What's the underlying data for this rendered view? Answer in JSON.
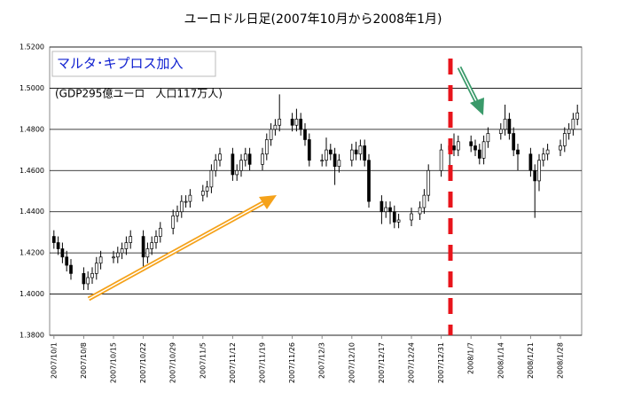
{
  "chart_data": {
    "type": "candlestick",
    "title": "ユーロドル日足(2007年10月から2008年1月)",
    "annotations": [
      "マルタ･キプロス加入",
      "(GDP295億ユーロ　人口117万人)"
    ],
    "x": [
      "2007/10/1",
      "2007/10/2",
      "2007/10/3",
      "2007/10/4",
      "2007/10/5",
      "2007/10/8",
      "2007/10/9",
      "2007/10/10",
      "2007/10/11",
      "2007/10/12",
      "2007/10/15",
      "2007/10/16",
      "2007/10/17",
      "2007/10/18",
      "2007/10/19",
      "2007/10/22",
      "2007/10/23",
      "2007/10/24",
      "2007/10/25",
      "2007/10/26",
      "2007/10/29",
      "2007/10/30",
      "2007/10/31",
      "2007/11/1",
      "2007/11/2",
      "2007/11/5",
      "2007/11/6",
      "2007/11/7",
      "2007/11/8",
      "2007/11/9",
      "2007/11/12",
      "2007/11/13",
      "2007/11/14",
      "2007/11/15",
      "2007/11/16",
      "2007/11/19",
      "2007/11/20",
      "2007/11/21",
      "2007/11/22",
      "2007/11/23",
      "2007/11/26",
      "2007/11/27",
      "2007/11/28",
      "2007/11/29",
      "2007/11/30",
      "2007/12/3",
      "2007/12/4",
      "2007/12/5",
      "2007/12/6",
      "2007/12/7",
      "2007/12/10",
      "2007/12/11",
      "2007/12/12",
      "2007/12/13",
      "2007/12/14",
      "2007/12/17",
      "2007/12/18",
      "2007/12/19",
      "2007/12/20",
      "2007/12/21",
      "2007/12/24",
      "2007/12/26",
      "2007/12/27",
      "2007/12/28",
      "2007/12/31",
      "2008/1/2",
      "2008/1/3",
      "2008/1/4",
      "2008/1/7",
      "2008/1/8",
      "2008/1/9",
      "2008/1/10",
      "2008/1/11",
      "2008/1/14",
      "2008/1/15",
      "2008/1/16",
      "2008/1/17",
      "2008/1/18",
      "2008/1/21",
      "2008/1/22",
      "2008/1/23",
      "2008/1/24",
      "2008/1/25",
      "2008/1/28",
      "2008/1/29",
      "2008/1/30",
      "2008/1/31",
      "2008/2/1"
    ],
    "open": [
      1.428,
      1.425,
      1.422,
      1.418,
      1.414,
      1.41,
      1.405,
      1.408,
      1.41,
      1.415,
      1.418,
      1.418,
      1.42,
      1.422,
      1.425,
      1.428,
      1.418,
      1.422,
      1.425,
      1.428,
      1.432,
      1.438,
      1.44,
      1.445,
      1.445,
      1.448,
      1.45,
      1.452,
      1.46,
      1.465,
      1.468,
      1.458,
      1.46,
      1.465,
      1.468,
      1.463,
      1.468,
      1.475,
      1.48,
      1.482,
      1.485,
      1.482,
      1.485,
      1.48,
      1.475,
      1.465,
      1.465,
      1.47,
      1.468,
      1.462,
      1.465,
      1.47,
      1.468,
      1.472,
      1.465,
      1.445,
      1.44,
      1.442,
      1.44,
      1.435,
      1.436,
      1.439,
      1.442,
      1.448,
      1.46,
      1.47,
      1.472,
      1.47,
      1.474,
      1.472,
      1.47,
      1.466,
      1.474,
      1.478,
      1.48,
      1.485,
      1.478,
      1.47,
      1.468,
      1.46,
      1.455,
      1.465,
      1.468,
      1.47,
      1.472,
      1.478,
      1.48,
      1.485
    ],
    "high": [
      1.431,
      1.428,
      1.425,
      1.421,
      1.417,
      1.413,
      1.411,
      1.413,
      1.418,
      1.421,
      1.421,
      1.423,
      1.425,
      1.428,
      1.431,
      1.431,
      1.425,
      1.428,
      1.431,
      1.435,
      1.441,
      1.443,
      1.448,
      1.448,
      1.451,
      1.453,
      1.455,
      1.463,
      1.468,
      1.471,
      1.471,
      1.463,
      1.468,
      1.471,
      1.471,
      1.471,
      1.478,
      1.483,
      1.485,
      1.497,
      1.488,
      1.49,
      1.488,
      1.483,
      1.478,
      1.468,
      1.476,
      1.473,
      1.471,
      1.468,
      1.473,
      1.474,
      1.475,
      1.475,
      1.468,
      1.448,
      1.445,
      1.445,
      1.443,
      1.439,
      1.442,
      1.445,
      1.451,
      1.463,
      1.473,
      1.475,
      1.478,
      1.477,
      1.477,
      1.475,
      1.473,
      1.477,
      1.481,
      1.483,
      1.492,
      1.488,
      1.481,
      1.473,
      1.471,
      1.463,
      1.468,
      1.471,
      1.473,
      1.475,
      1.481,
      1.483,
      1.488,
      1.492
    ],
    "low": [
      1.422,
      1.419,
      1.415,
      1.411,
      1.407,
      1.402,
      1.402,
      1.405,
      1.407,
      1.412,
      1.415,
      1.415,
      1.417,
      1.419,
      1.422,
      1.413,
      1.415,
      1.419,
      1.422,
      1.425,
      1.429,
      1.435,
      1.437,
      1.442,
      1.442,
      1.445,
      1.447,
      1.449,
      1.457,
      1.462,
      1.455,
      1.455,
      1.457,
      1.462,
      1.46,
      1.46,
      1.465,
      1.472,
      1.477,
      1.479,
      1.479,
      1.479,
      1.477,
      1.472,
      1.462,
      1.462,
      1.462,
      1.465,
      1.453,
      1.459,
      1.462,
      1.465,
      1.465,
      1.462,
      1.442,
      1.434,
      1.437,
      1.434,
      1.432,
      1.432,
      1.433,
      1.436,
      1.439,
      1.445,
      1.457,
      1.457,
      1.467,
      1.467,
      1.469,
      1.467,
      1.463,
      1.463,
      1.471,
      1.475,
      1.477,
      1.475,
      1.467,
      1.46,
      1.457,
      1.437,
      1.45,
      1.462,
      1.465,
      1.467,
      1.469,
      1.475,
      1.477,
      1.482
    ],
    "close": [
      1.425,
      1.422,
      1.418,
      1.414,
      1.41,
      1.405,
      1.408,
      1.41,
      1.415,
      1.418,
      1.418,
      1.42,
      1.422,
      1.425,
      1.428,
      1.418,
      1.422,
      1.425,
      1.428,
      1.432,
      1.438,
      1.44,
      1.445,
      1.445,
      1.448,
      1.45,
      1.452,
      1.46,
      1.465,
      1.468,
      1.458,
      1.46,
      1.465,
      1.468,
      1.463,
      1.468,
      1.475,
      1.48,
      1.482,
      1.485,
      1.482,
      1.485,
      1.48,
      1.475,
      1.465,
      1.465,
      1.47,
      1.468,
      1.462,
      1.465,
      1.47,
      1.468,
      1.472,
      1.465,
      1.445,
      1.44,
      1.442,
      1.44,
      1.435,
      1.436,
      1.439,
      1.442,
      1.448,
      1.46,
      1.47,
      1.472,
      1.47,
      1.474,
      1.472,
      1.47,
      1.466,
      1.474,
      1.478,
      1.48,
      1.485,
      1.478,
      1.47,
      1.468,
      1.46,
      1.455,
      1.465,
      1.468,
      1.47,
      1.472,
      1.478,
      1.48,
      1.485,
      1.488
    ],
    "xlim": [
      "2007/9/30",
      "2008/2/2"
    ],
    "xticks": [
      "2007/10/1",
      "2007/10/8",
      "2007/10/15",
      "2007/10/22",
      "2007/10/29",
      "2007/11/5",
      "2007/11/12",
      "2007/11/19",
      "2007/11/26",
      "2007/12/3",
      "2007/12/10",
      "2007/12/17",
      "2007/12/24",
      "2007/12/31",
      "2008/1/7",
      "2008/1/14",
      "2008/1/21",
      "2008/1/28"
    ],
    "ylim": [
      1.38,
      1.52
    ],
    "yticks": [
      {
        "value": 1.38,
        "label": "1.3800"
      },
      {
        "value": 1.4,
        "label": "1.4000"
      },
      {
        "value": 1.42,
        "label": "1.4200"
      },
      {
        "value": 1.44,
        "label": "1.4400"
      },
      {
        "value": 1.46,
        "label": "1.4600"
      },
      {
        "value": 1.48,
        "label": "1.4800"
      },
      {
        "value": 1.5,
        "label": "1.5000"
      },
      {
        "value": 1.52,
        "label": "1.5200"
      }
    ],
    "grid": true
  }
}
